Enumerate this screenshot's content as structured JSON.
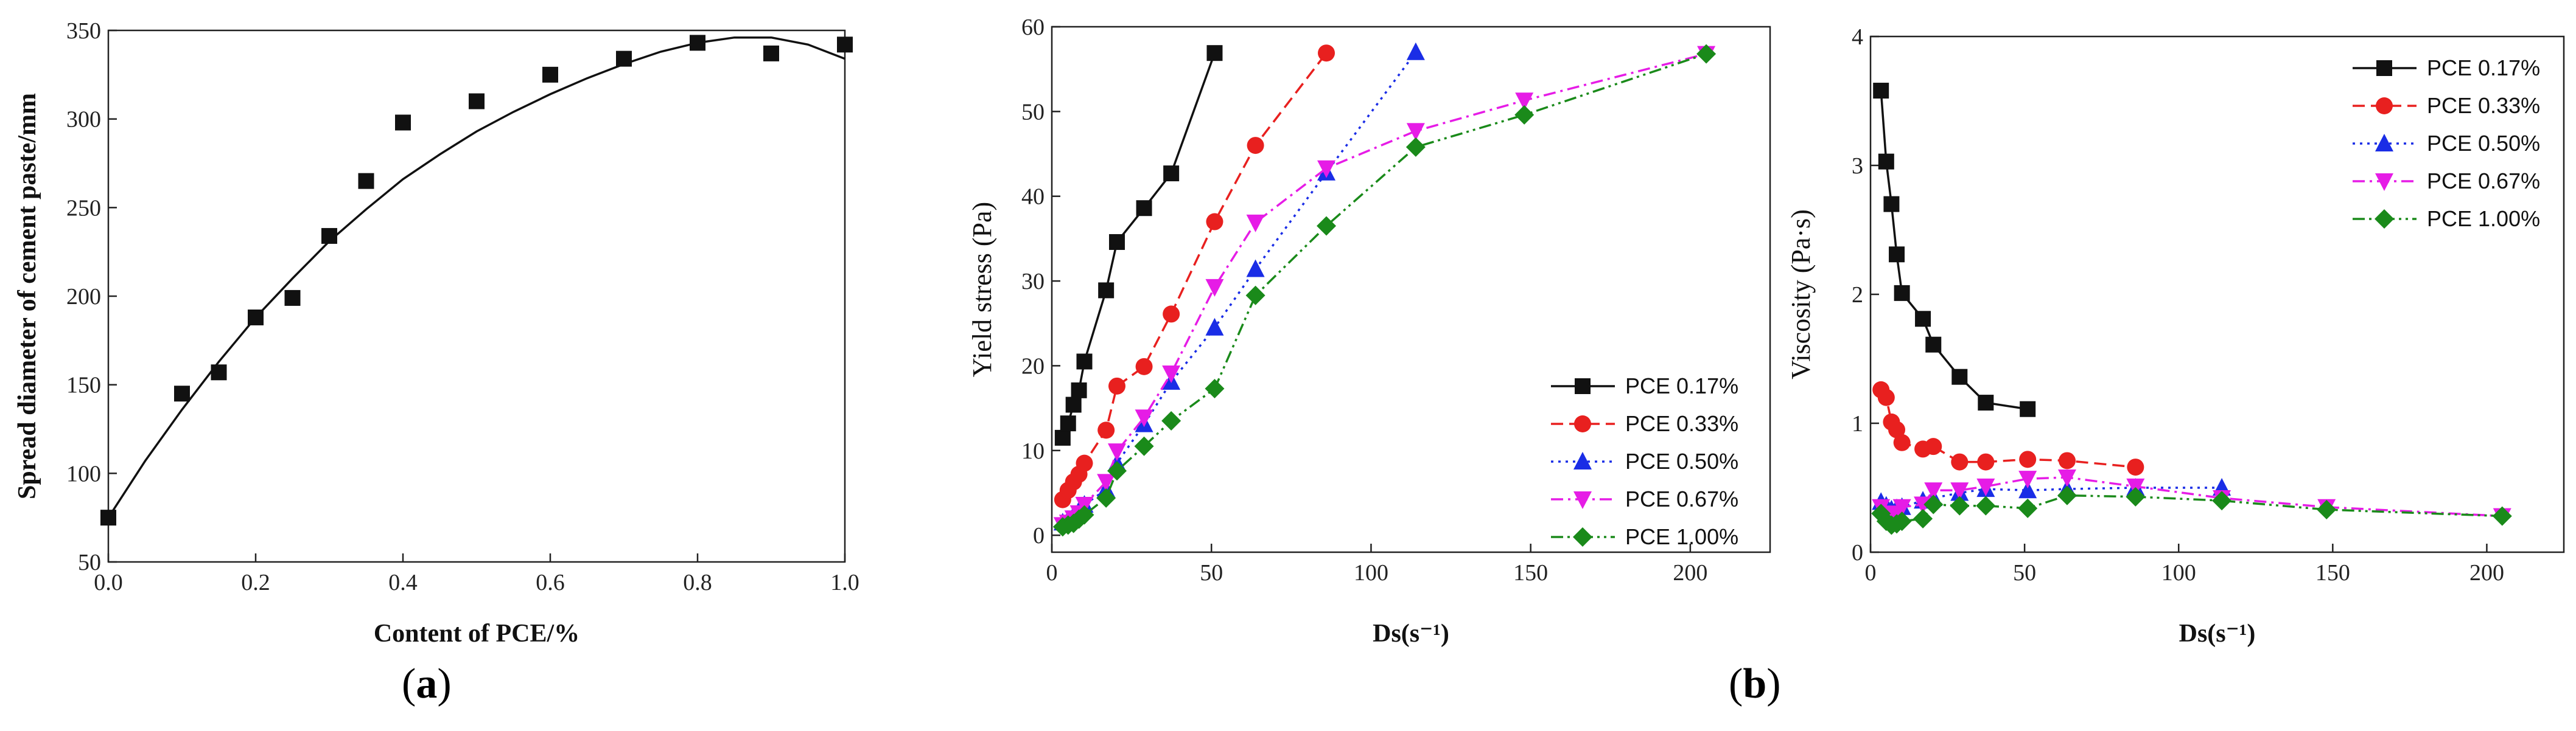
{
  "panel_labels": {
    "a": "a",
    "b": "b"
  },
  "colors": {
    "black": "#111111",
    "red": "#e8201f",
    "blue": "#1a2de6",
    "magenta": "#e61ce6",
    "green": "#1a8a1a"
  },
  "chart_data": [
    {
      "id": "a",
      "type": "scatter",
      "title": "",
      "xlabel": "Content of PCE/%",
      "ylabel": "Spread diameter of cement paste/mm",
      "xlim": [
        0.0,
        1.0
      ],
      "ylim": [
        50,
        350
      ],
      "xticks": [
        "0.0",
        "0.2",
        "0.4",
        "0.6",
        "0.8",
        "1.0"
      ],
      "yticks": [
        "50",
        "100",
        "150",
        "200",
        "250",
        "300",
        "350"
      ],
      "points": {
        "x": [
          0.0,
          0.1,
          0.15,
          0.2,
          0.25,
          0.3,
          0.35,
          0.4,
          0.5,
          0.6,
          0.7,
          0.8,
          0.9,
          1.0
        ],
        "y": [
          75,
          145,
          157,
          188,
          199,
          234,
          265,
          298,
          310,
          325,
          334,
          343,
          337,
          342
        ]
      },
      "fit": {
        "type": "line",
        "x": [
          0.0,
          0.05,
          0.1,
          0.15,
          0.2,
          0.25,
          0.3,
          0.35,
          0.4,
          0.45,
          0.5,
          0.55,
          0.6,
          0.65,
          0.7,
          0.75,
          0.8,
          0.85,
          0.9,
          0.95,
          1.0
        ],
        "y": [
          75,
          107,
          136,
          163,
          188,
          210,
          231,
          249,
          266,
          280,
          293,
          304,
          314,
          323,
          331,
          338,
          343,
          346,
          346,
          342,
          334
        ]
      }
    },
    {
      "id": "b-yield",
      "type": "line",
      "xlabel": "Ds(s⁻¹)",
      "ylabel": "Yield stress (Pa)",
      "xlim": [
        0,
        225
      ],
      "ylim": [
        -2,
        60
      ],
      "xticks": [
        "0",
        "50",
        "100",
        "150",
        "200"
      ],
      "yticks": [
        "0",
        "10",
        "20",
        "30",
        "40",
        "50",
        "60"
      ],
      "legend_position": "bottom-right",
      "series": [
        {
          "name": "PCE 0.17%",
          "color": "black",
          "marker": "square",
          "dash": "solid",
          "x": [
            3.4,
            5.1,
            6.8,
            8.5,
            10.2,
            17,
            20.4,
            28.9,
            37.4,
            51
          ],
          "y": [
            11.5,
            13.2,
            15.4,
            17.1,
            20.5,
            28.9,
            34.6,
            38.6,
            42.7,
            56.9
          ]
        },
        {
          "name": "PCE 0.33%",
          "color": "red",
          "marker": "circle",
          "dash": "dash",
          "x": [
            3.4,
            5.1,
            6.8,
            8.5,
            10.2,
            17,
            20.4,
            28.9,
            37.4,
            51,
            63.8,
            86
          ],
          "y": [
            4.2,
            5.3,
            6.3,
            7.2,
            8.5,
            12.4,
            17.6,
            19.9,
            26.1,
            37.0,
            46.0,
            56.9
          ]
        },
        {
          "name": "PCE 0.50%",
          "color": "blue",
          "marker": "triangle",
          "dash": "dot",
          "x": [
            3.4,
            5.1,
            6.8,
            8.5,
            10.2,
            17,
            20.4,
            28.9,
            37.4,
            51,
            63.8,
            86,
            114
          ],
          "y": [
            1.5,
            1.8,
            2.3,
            2.9,
            3.6,
            5.4,
            8.5,
            13.1,
            18.1,
            24.5,
            31.4,
            42.8,
            57.0
          ]
        },
        {
          "name": "PCE 0.67%",
          "color": "magenta",
          "marker": "triangle-down",
          "dash": "dashdot",
          "x": [
            3.4,
            5.1,
            6.8,
            8.5,
            10.2,
            17,
            20.4,
            28.9,
            37.4,
            51,
            63.8,
            86,
            114,
            148,
            205
          ],
          "y": [
            1.2,
            1.5,
            2.0,
            2.6,
            3.6,
            6.3,
            9.9,
            13.9,
            19.1,
            29.3,
            36.9,
            43.3,
            47.7,
            51.3,
            56.8
          ]
        },
        {
          "name": "PCE 1.00%",
          "color": "green",
          "marker": "diamond",
          "dash": "dashdotdot",
          "x": [
            3.4,
            5.1,
            6.8,
            8.5,
            10.2,
            17,
            20.4,
            28.9,
            37.4,
            51,
            63.8,
            86,
            114,
            148,
            205
          ],
          "y": [
            1.0,
            1.2,
            1.4,
            1.9,
            2.4,
            4.4,
            7.6,
            10.5,
            13.5,
            17.3,
            28.3,
            36.5,
            45.8,
            49.6,
            56.8
          ]
        }
      ]
    },
    {
      "id": "b-viscosity",
      "type": "line",
      "xlabel": "Ds(s⁻¹)",
      "ylabel": "Viscosity (Pa·s)",
      "xlim": [
        0,
        225
      ],
      "ylim": [
        0,
        4
      ],
      "xticks": [
        "0",
        "50",
        "100",
        "150",
        "200"
      ],
      "yticks": [
        "0",
        "1",
        "2",
        "3",
        "4"
      ],
      "legend_position": "top-right",
      "series": [
        {
          "name": "PCE 0.17%",
          "color": "black",
          "marker": "square",
          "dash": "solid",
          "x": [
            3.4,
            5.1,
            6.8,
            8.5,
            10.2,
            17,
            20.4,
            28.9,
            37.4,
            51
          ],
          "y": [
            3.58,
            3.03,
            2.7,
            2.31,
            2.01,
            1.81,
            1.61,
            1.36,
            1.16,
            1.11
          ]
        },
        {
          "name": "PCE 0.33%",
          "color": "red",
          "marker": "circle",
          "dash": "dash",
          "x": [
            3.4,
            5.1,
            6.8,
            8.5,
            10.2,
            17,
            20.4,
            28.9,
            37.4,
            51,
            63.8,
            86
          ],
          "y": [
            1.26,
            1.2,
            1.01,
            0.95,
            0.85,
            0.8,
            0.82,
            0.7,
            0.7,
            0.72,
            0.71,
            0.66
          ]
        },
        {
          "name": "PCE 0.50%",
          "color": "blue",
          "marker": "triangle",
          "dash": "dot",
          "x": [
            3.4,
            5.1,
            6.8,
            8.5,
            10.2,
            17,
            20.4,
            28.9,
            37.4,
            51,
            63.8,
            86,
            114
          ],
          "y": [
            0.39,
            0.36,
            0.33,
            0.34,
            0.35,
            0.4,
            0.42,
            0.46,
            0.49,
            0.48,
            0.49,
            0.5,
            0.5
          ]
        },
        {
          "name": "PCE 0.67%",
          "color": "magenta",
          "marker": "triangle-down",
          "dash": "dashdot",
          "x": [
            3.4,
            5.1,
            6.8,
            8.5,
            10.2,
            17,
            20.4,
            28.9,
            37.4,
            51,
            63.8,
            86,
            114,
            148,
            205
          ],
          "y": [
            0.35,
            0.3,
            0.29,
            0.3,
            0.35,
            0.37,
            0.48,
            0.48,
            0.51,
            0.57,
            0.58,
            0.51,
            0.42,
            0.35,
            0.28
          ]
        },
        {
          "name": "PCE 1.00%",
          "color": "green",
          "marker": "diamond",
          "dash": "dashdotdot",
          "x": [
            3.4,
            5.1,
            6.8,
            8.5,
            10.2,
            17,
            20.4,
            28.9,
            37.4,
            51,
            63.8,
            86,
            114,
            148,
            205
          ],
          "y": [
            0.3,
            0.24,
            0.21,
            0.22,
            0.24,
            0.26,
            0.37,
            0.36,
            0.36,
            0.34,
            0.44,
            0.43,
            0.4,
            0.33,
            0.28
          ]
        }
      ]
    }
  ]
}
